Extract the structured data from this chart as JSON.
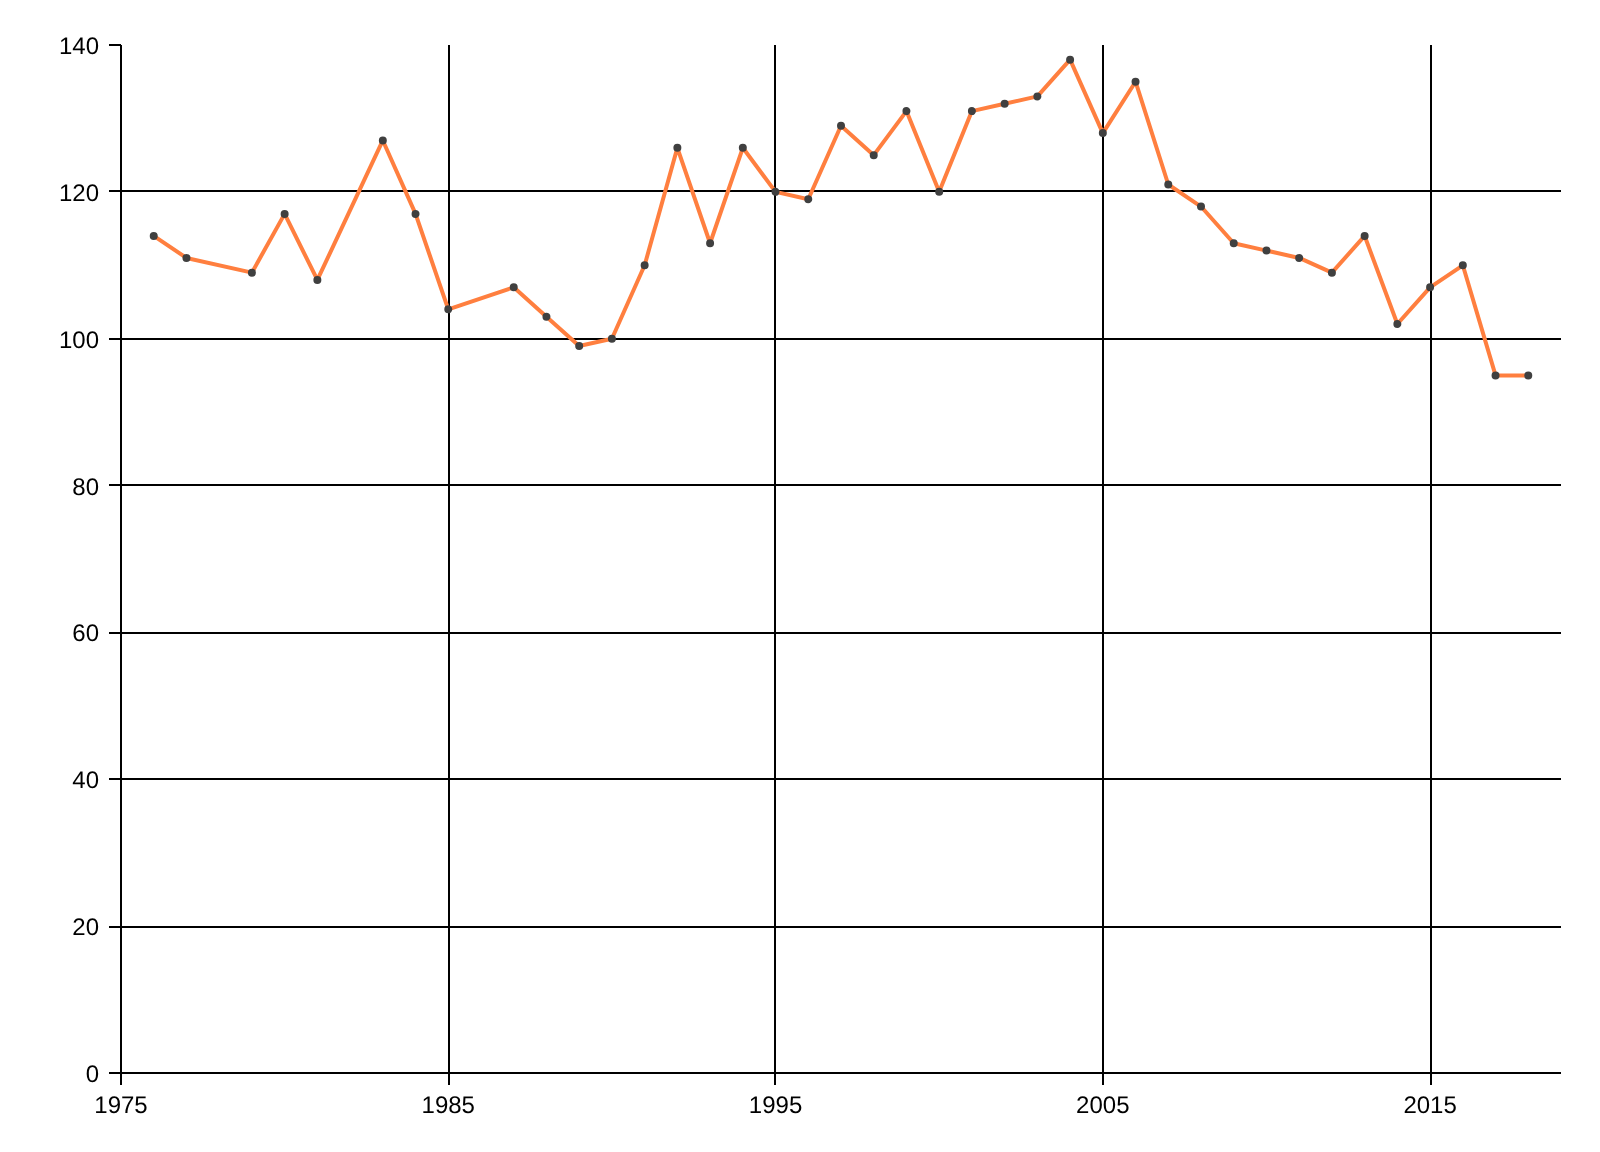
{
  "chart_data": {
    "type": "line",
    "x": [
      1976,
      1977,
      1979,
      1980,
      1981,
      1983,
      1984,
      1985,
      1987,
      1988,
      1989,
      1990,
      1991,
      1992,
      1993,
      1994,
      1995,
      1996,
      1997,
      1998,
      1999,
      2000,
      2001,
      2002,
      2003,
      2004,
      2005,
      2006,
      2007,
      2008,
      2009,
      2010,
      2011,
      2012,
      2013,
      2014,
      2015,
      2016,
      2017,
      2018
    ],
    "series": [
      {
        "color": "#ff7f3f",
        "values": [
          114,
          111,
          109,
          117,
          108,
          127,
          117,
          104,
          107,
          103,
          99,
          100,
          110,
          126,
          113,
          126,
          120,
          119,
          129,
          125,
          131,
          120,
          131,
          132,
          133,
          138,
          128,
          135,
          121,
          118,
          113,
          112,
          111,
          109,
          114,
          102,
          107,
          110,
          95,
          95
        ]
      }
    ],
    "xlim": [
      1975,
      2019
    ],
    "xticks": [
      1975,
      1985,
      1995,
      2005,
      2015
    ],
    "ylim": [
      0,
      140
    ],
    "yticks": [
      0,
      20,
      40,
      60,
      80,
      100,
      120,
      140
    ],
    "grid": true,
    "marker": "circle",
    "line_style": "solid"
  }
}
